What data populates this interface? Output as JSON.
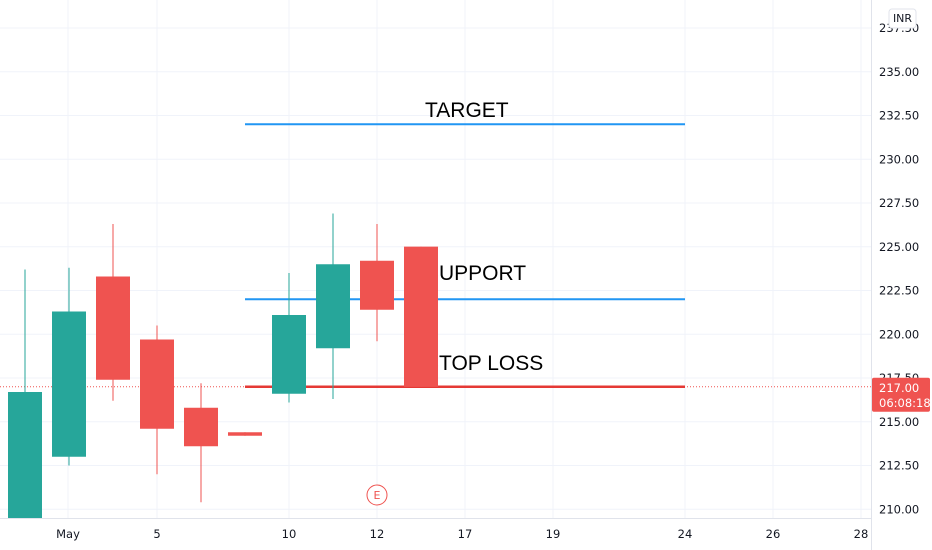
{
  "currency": "INR",
  "colors": {
    "up": "#26a69a",
    "down": "#ef5350",
    "target_line": "#2196f3",
    "support_line": "#2196f3",
    "stoploss_line": "#e53935",
    "grid": "#f0f3fa",
    "axis_text": "#131722",
    "price_tag": "#ef5350"
  },
  "price_tag": {
    "price": "217.00",
    "countdown": "06:08:18"
  },
  "event_marker": "E",
  "chart_data": {
    "type": "candlestick",
    "ylim": [
      209.5,
      237.3
    ],
    "y_ticks": [
      "210.00",
      "212.50",
      "215.00",
      "217.50",
      "220.00",
      "222.50",
      "225.00",
      "227.50",
      "230.00",
      "232.50",
      "235.00",
      "237.50"
    ],
    "x_ticks": [
      "May",
      "5",
      "10",
      "12",
      "17",
      "19",
      "24",
      "26",
      "28"
    ],
    "candles": [
      {
        "open": 209.5,
        "high": 223.7,
        "low": 209.5,
        "close": 216.7
      },
      {
        "open": 213.0,
        "high": 223.8,
        "low": 212.5,
        "close": 221.3
      },
      {
        "open": 223.3,
        "high": 226.3,
        "low": 216.2,
        "close": 217.4
      },
      {
        "open": 219.7,
        "high": 220.5,
        "low": 212.0,
        "close": 214.6
      },
      {
        "open": 215.8,
        "high": 217.2,
        "low": 210.4,
        "close": 213.6
      },
      {
        "open": 214.4,
        "high": 214.4,
        "low": 214.2,
        "close": 214.2
      },
      {
        "open": 216.6,
        "high": 223.5,
        "low": 216.1,
        "close": 221.1
      },
      {
        "open": 219.2,
        "high": 226.9,
        "low": 216.3,
        "close": 224.0
      },
      {
        "open": 224.2,
        "high": 226.3,
        "low": 219.6,
        "close": 221.4
      },
      {
        "open": 225.0,
        "high": 225.0,
        "low": 217.0,
        "close": 217.0
      }
    ],
    "horizontal_levels": [
      {
        "label": "TARGET",
        "price": 232.0,
        "color": "#2196f3"
      },
      {
        "label": "SUPPORT",
        "price": 222.0,
        "color": "#2196f3"
      },
      {
        "label": "STOP LOSS",
        "price": 217.0,
        "color": "#e53935"
      }
    ],
    "current_price": 217.0
  }
}
